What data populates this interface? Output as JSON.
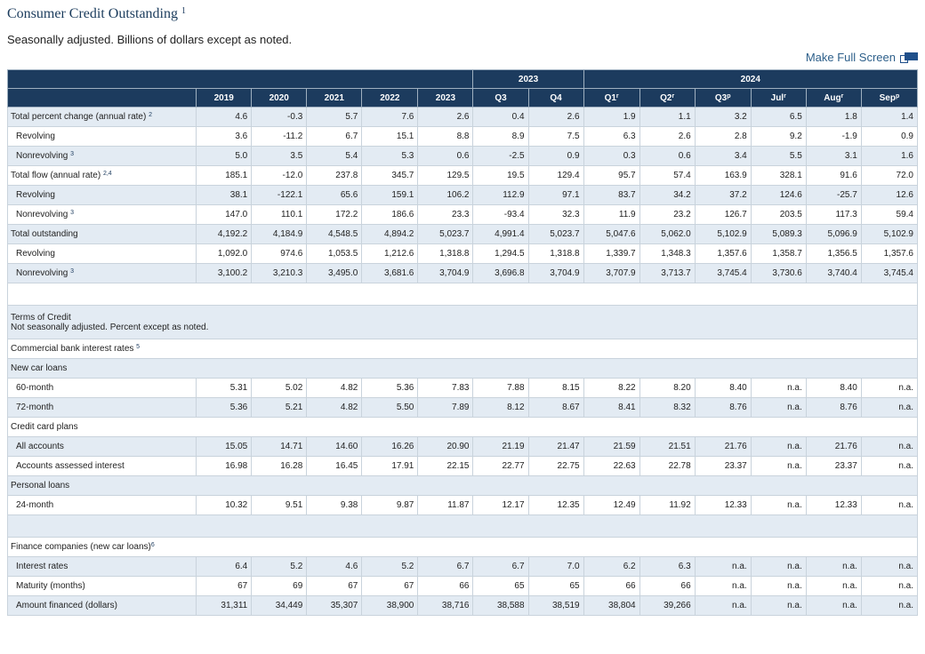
{
  "header": {
    "title": "Consumer Credit Outstanding",
    "title_note": "1",
    "subtitle": "Seasonally adjusted. Billions of dollars except as noted.",
    "fullscreen_label": "Make Full Screen"
  },
  "columns": {
    "group_2023": "2023",
    "group_2024": "2024",
    "years": [
      "2019",
      "2020",
      "2021",
      "2022",
      "2023"
    ],
    "q2023": [
      "Q3",
      "Q4"
    ],
    "cols2024": [
      {
        "label": "Q1",
        "mark": "r"
      },
      {
        "label": "Q2",
        "mark": "r"
      },
      {
        "label": "Q3",
        "mark": "p"
      },
      {
        "label": "Jul",
        "mark": "r"
      },
      {
        "label": "Aug",
        "mark": "r"
      },
      {
        "label": "Sep",
        "mark": "p"
      }
    ]
  },
  "rows": [
    {
      "label": "Total percent change (annual rate)",
      "note": "2",
      "indent": false,
      "values": [
        "4.6",
        "-0.3",
        "5.7",
        "7.6",
        "2.6",
        "0.4",
        "2.6",
        "1.9",
        "1.1",
        "3.2",
        "6.5",
        "1.8",
        "1.4"
      ]
    },
    {
      "label": "Revolving",
      "note": "",
      "indent": true,
      "values": [
        "3.6",
        "-11.2",
        "6.7",
        "15.1",
        "8.8",
        "8.9",
        "7.5",
        "6.3",
        "2.6",
        "2.8",
        "9.2",
        "-1.9",
        "0.9"
      ]
    },
    {
      "label": "Nonrevolving",
      "note": "3",
      "indent": true,
      "values": [
        "5.0",
        "3.5",
        "5.4",
        "5.3",
        "0.6",
        "-2.5",
        "0.9",
        "0.3",
        "0.6",
        "3.4",
        "5.5",
        "3.1",
        "1.6"
      ]
    },
    {
      "label": "Total flow (annual rate)",
      "note": "2,4",
      "indent": false,
      "values": [
        "185.1",
        "-12.0",
        "237.8",
        "345.7",
        "129.5",
        "19.5",
        "129.4",
        "95.7",
        "57.4",
        "163.9",
        "328.1",
        "91.6",
        "72.0"
      ]
    },
    {
      "label": "Revolving",
      "note": "",
      "indent": true,
      "values": [
        "38.1",
        "-122.1",
        "65.6",
        "159.1",
        "106.2",
        "112.9",
        "97.1",
        "83.7",
        "34.2",
        "37.2",
        "124.6",
        "-25.7",
        "12.6"
      ]
    },
    {
      "label": "Nonrevolving",
      "note": "3",
      "indent": true,
      "values": [
        "147.0",
        "110.1",
        "172.2",
        "186.6",
        "23.3",
        "-93.4",
        "32.3",
        "11.9",
        "23.2",
        "126.7",
        "203.5",
        "117.3",
        "59.4"
      ]
    },
    {
      "label": "Total outstanding",
      "note": "",
      "indent": false,
      "values": [
        "4,192.2",
        "4,184.9",
        "4,548.5",
        "4,894.2",
        "5,023.7",
        "4,991.4",
        "5,023.7",
        "5,047.6",
        "5,062.0",
        "5,102.9",
        "5,089.3",
        "5,096.9",
        "5,102.9"
      ]
    },
    {
      "label": "Revolving",
      "note": "",
      "indent": true,
      "values": [
        "1,092.0",
        "974.6",
        "1,053.5",
        "1,212.6",
        "1,318.8",
        "1,294.5",
        "1,318.8",
        "1,339.7",
        "1,348.3",
        "1,357.6",
        "1,358.7",
        "1,356.5",
        "1,357.6"
      ]
    },
    {
      "label": "Nonrevolving",
      "note": "3",
      "indent": true,
      "values": [
        "3,100.2",
        "3,210.3",
        "3,495.0",
        "3,681.6",
        "3,704.9",
        "3,696.8",
        "3,704.9",
        "3,707.9",
        "3,713.7",
        "3,745.4",
        "3,730.6",
        "3,740.4",
        "3,745.4"
      ]
    }
  ],
  "terms": {
    "title": "Terms of Credit",
    "note": "Not seasonally adjusted. Percent except as noted.",
    "commercial_label": "Commercial bank interest rates",
    "commercial_note": "5",
    "new_car_label": "New car loans",
    "m60": {
      "label": "60-month",
      "values": [
        "5.31",
        "5.02",
        "4.82",
        "5.36",
        "7.83",
        "7.88",
        "8.15",
        "8.22",
        "8.20",
        "8.40",
        "n.a.",
        "8.40",
        "n.a."
      ]
    },
    "m72": {
      "label": "72-month",
      "values": [
        "5.36",
        "5.21",
        "4.82",
        "5.50",
        "7.89",
        "8.12",
        "8.67",
        "8.41",
        "8.32",
        "8.76",
        "n.a.",
        "8.76",
        "n.a."
      ]
    },
    "cc_label": "Credit card plans",
    "all_accounts": {
      "label": "All accounts",
      "values": [
        "15.05",
        "14.71",
        "14.60",
        "16.26",
        "20.90",
        "21.19",
        "21.47",
        "21.59",
        "21.51",
        "21.76",
        "n.a.",
        "21.76",
        "n.a."
      ]
    },
    "assessed": {
      "label": "Accounts assessed interest",
      "values": [
        "16.98",
        "16.28",
        "16.45",
        "17.91",
        "22.15",
        "22.77",
        "22.75",
        "22.63",
        "22.78",
        "23.37",
        "n.a.",
        "23.37",
        "n.a."
      ]
    },
    "personal_label": "Personal loans",
    "m24": {
      "label": "24-month",
      "values": [
        "10.32",
        "9.51",
        "9.38",
        "9.87",
        "11.87",
        "12.17",
        "12.35",
        "12.49",
        "11.92",
        "12.33",
        "n.a.",
        "12.33",
        "n.a."
      ]
    },
    "finance_label": "Finance companies (new car loans)",
    "finance_note": "6",
    "interest": {
      "label": "Interest rates",
      "values": [
        "6.4",
        "5.2",
        "4.6",
        "5.2",
        "6.7",
        "6.7",
        "7.0",
        "6.2",
        "6.3",
        "n.a.",
        "n.a.",
        "n.a.",
        "n.a."
      ]
    },
    "maturity": {
      "label": "Maturity (months)",
      "values": [
        "67",
        "69",
        "67",
        "67",
        "66",
        "65",
        "65",
        "66",
        "66",
        "n.a.",
        "n.a.",
        "n.a.",
        "n.a."
      ]
    },
    "amount": {
      "label": "Amount financed (dollars)",
      "values": [
        "31,311",
        "34,449",
        "35,307",
        "38,900",
        "38,716",
        "38,588",
        "38,519",
        "38,804",
        "39,266",
        "n.a.",
        "n.a.",
        "n.a.",
        "n.a."
      ]
    }
  }
}
